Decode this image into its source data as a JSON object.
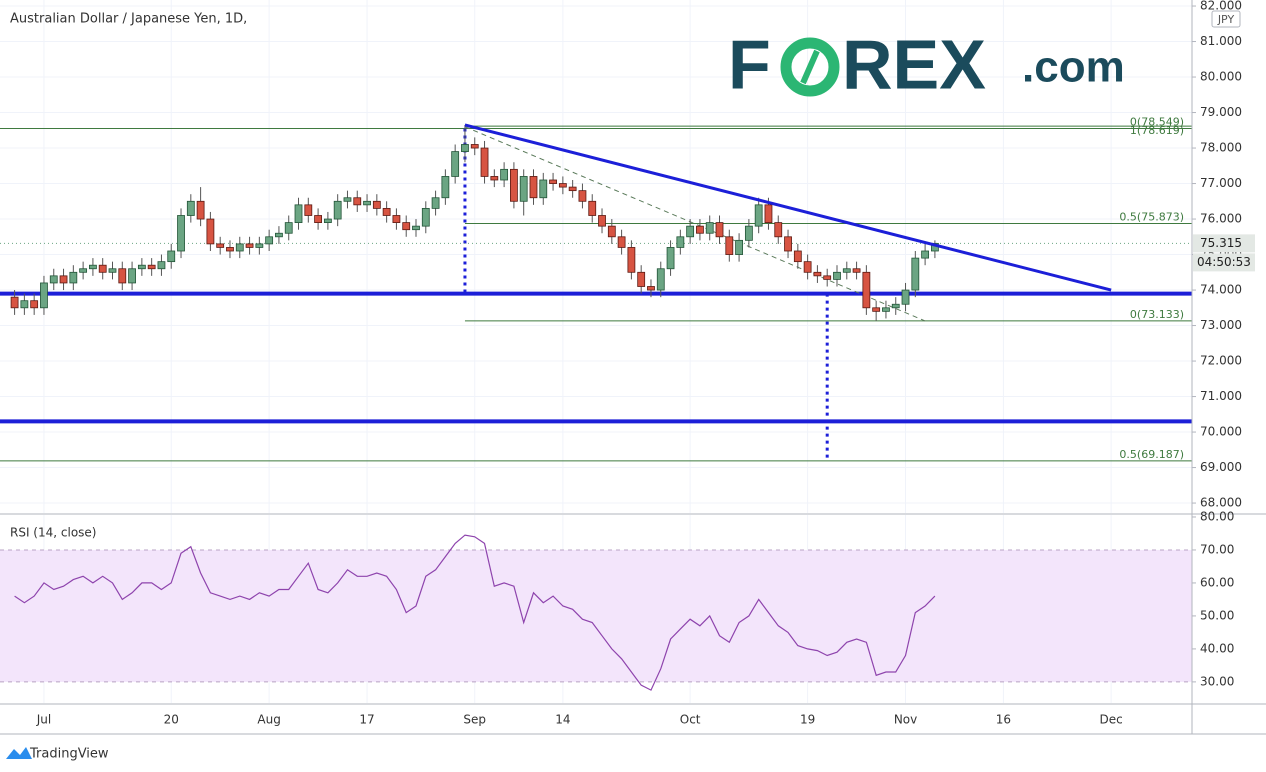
{
  "chart_data": {
    "type": "candlestick",
    "title": "Australian Dollar / Japanese Yen, 1D,",
    "currency": "JPY",
    "logo": [
      "F",
      "REX",
      ".com"
    ],
    "footer": "TradingView",
    "countdown": "04:50:53",
    "up_color": "#6ba583",
    "down_color": "#d75442",
    "xlim": [
      -1.49,
      120.26
    ],
    "xticks": [
      {
        "value": 3,
        "label": "Jul"
      },
      {
        "value": 16,
        "label": "20"
      },
      {
        "value": 26,
        "label": "Aug"
      },
      {
        "value": 36,
        "label": "17"
      },
      {
        "value": 47,
        "label": "Sep"
      },
      {
        "value": 56,
        "label": "14"
      },
      {
        "value": 69,
        "label": "Oct"
      },
      {
        "value": 81,
        "label": "19"
      },
      {
        "value": 91,
        "label": "Nov"
      },
      {
        "value": 101,
        "label": "16"
      },
      {
        "value": 112,
        "label": "Dec"
      }
    ],
    "ylim": [
      67.72,
      82.17
    ],
    "yticks": [
      {
        "value": 68,
        "label": "68.000"
      },
      {
        "value": 69,
        "label": "69.000"
      },
      {
        "value": 70,
        "label": "70.000"
      },
      {
        "value": 71,
        "label": "71.000"
      },
      {
        "value": 72,
        "label": "72.000"
      },
      {
        "value": 73,
        "label": "73.000"
      },
      {
        "value": 74,
        "label": "74.000"
      },
      {
        "value": 75,
        "label": "75.000"
      },
      {
        "value": 76,
        "label": "76.000"
      },
      {
        "value": 77,
        "label": "77.000"
      },
      {
        "value": 78,
        "label": "78.000"
      },
      {
        "value": 79,
        "label": "79.000"
      },
      {
        "value": 80,
        "label": "80.000"
      },
      {
        "value": 81,
        "label": "81.000"
      },
      {
        "value": 82,
        "label": "82.000"
      }
    ],
    "grid": true,
    "open": [
      73.8,
      73.5,
      73.7,
      73.5,
      74.2,
      74.4,
      74.2,
      74.5,
      74.6,
      74.7,
      74.5,
      74.6,
      74.2,
      74.6,
      74.7,
      74.6,
      74.8,
      75.1,
      76.1,
      76.5,
      76.0,
      75.3,
      75.2,
      75.1,
      75.3,
      75.2,
      75.3,
      75.5,
      75.6,
      75.9,
      76.4,
      76.1,
      75.9,
      76.0,
      76.5,
      76.6,
      76.4,
      76.5,
      76.3,
      76.1,
      75.9,
      75.7,
      75.8,
      76.3,
      76.6,
      77.2,
      77.9,
      78.1,
      78.0,
      77.2,
      77.1,
      77.4,
      76.5,
      77.2,
      76.6,
      77.1,
      77.0,
      76.9,
      76.8,
      76.5,
      76.1,
      75.8,
      75.5,
      75.2,
      74.5,
      74.1,
      74.0,
      74.6,
      75.2,
      75.5,
      75.8,
      75.6,
      75.9,
      75.5,
      75.0,
      75.4,
      75.8,
      76.4,
      75.9,
      75.5,
      75.1,
      74.8,
      74.5,
      74.4,
      74.3,
      74.5,
      74.6,
      74.5,
      73.5,
      73.4,
      73.5,
      73.6,
      74.0,
      74.9,
      75.1
    ],
    "high": [
      74.0,
      73.9,
      73.9,
      74.4,
      74.6,
      74.6,
      74.7,
      74.8,
      74.9,
      74.9,
      74.8,
      74.8,
      74.8,
      74.9,
      74.9,
      75.0,
      75.3,
      76.3,
      76.7,
      76.9,
      76.2,
      75.5,
      75.4,
      75.5,
      75.5,
      75.5,
      75.7,
      75.8,
      76.1,
      76.6,
      76.6,
      76.3,
      76.2,
      76.7,
      76.8,
      76.8,
      76.7,
      76.7,
      76.5,
      76.3,
      76.1,
      76.0,
      76.5,
      76.8,
      77.4,
      78.1,
      78.65,
      78.3,
      78.2,
      77.4,
      77.6,
      77.6,
      77.4,
      77.4,
      77.3,
      77.3,
      77.2,
      77.1,
      77.0,
      76.7,
      76.3,
      76.0,
      75.7,
      75.4,
      74.7,
      74.3,
      74.8,
      75.4,
      75.7,
      76.0,
      76.0,
      76.1,
      76.1,
      75.7,
      75.6,
      76.0,
      76.6,
      76.6,
      76.1,
      75.7,
      75.3,
      75.0,
      74.7,
      74.6,
      74.7,
      74.8,
      74.8,
      74.7,
      73.7,
      73.7,
      73.8,
      74.2,
      75.1,
      75.3,
      75.4
    ],
    "low": [
      73.3,
      73.3,
      73.3,
      73.3,
      74.0,
      74.0,
      74.0,
      74.3,
      74.4,
      74.3,
      74.3,
      74.0,
      74.0,
      74.4,
      74.4,
      74.4,
      74.6,
      74.9,
      75.9,
      75.8,
      75.1,
      75.0,
      74.9,
      74.9,
      75.0,
      75.0,
      75.1,
      75.3,
      75.4,
      75.7,
      75.9,
      75.7,
      75.7,
      75.8,
      76.3,
      76.2,
      76.2,
      76.1,
      75.9,
      75.7,
      75.5,
      75.5,
      75.6,
      76.1,
      76.4,
      77.0,
      77.6,
      77.8,
      77.0,
      76.9,
      76.9,
      76.3,
      76.1,
      76.4,
      76.4,
      76.8,
      76.7,
      76.6,
      76.3,
      75.9,
      75.6,
      75.3,
      75.0,
      74.3,
      73.9,
      73.8,
      73.8,
      74.4,
      75.0,
      75.3,
      75.4,
      75.4,
      75.3,
      74.8,
      74.8,
      75.2,
      75.6,
      75.7,
      75.3,
      74.9,
      74.6,
      74.3,
      74.2,
      74.1,
      74.1,
      74.3,
      74.3,
      73.3,
      73.13,
      73.2,
      73.3,
      73.4,
      73.8,
      74.7,
      74.9
    ],
    "close": [
      73.5,
      73.7,
      73.5,
      74.2,
      74.4,
      74.2,
      74.5,
      74.6,
      74.7,
      74.5,
      74.6,
      74.2,
      74.6,
      74.7,
      74.6,
      74.8,
      75.1,
      76.1,
      76.5,
      76.0,
      75.3,
      75.2,
      75.1,
      75.3,
      75.2,
      75.3,
      75.5,
      75.6,
      75.9,
      76.4,
      76.1,
      75.9,
      76.0,
      76.5,
      76.6,
      76.4,
      76.5,
      76.3,
      76.1,
      75.9,
      75.7,
      75.8,
      76.3,
      76.6,
      77.2,
      77.9,
      78.1,
      78.0,
      77.2,
      77.1,
      77.4,
      76.5,
      77.2,
      76.6,
      77.1,
      77.0,
      76.9,
      76.8,
      76.5,
      76.1,
      75.8,
      75.5,
      75.2,
      74.5,
      74.1,
      74.0,
      74.6,
      75.2,
      75.5,
      75.8,
      75.6,
      75.9,
      75.5,
      75.0,
      75.4,
      75.8,
      76.4,
      75.9,
      75.5,
      75.1,
      74.8,
      74.5,
      74.4,
      74.3,
      74.5,
      74.6,
      74.5,
      73.5,
      73.4,
      73.5,
      73.6,
      74.0,
      74.9,
      75.1,
      75.315
    ],
    "hlines": {
      "color": "#1c1fd8",
      "values": [
        73.9,
        70.3
      ]
    },
    "trendline": {
      "color": "#1c1fd8",
      "x": [
        46,
        112
      ],
      "y": [
        78.65,
        74.0
      ]
    },
    "dashed": {
      "color": "#5a7a5a",
      "x": [
        46,
        93
      ],
      "y": [
        78.6,
        73.13
      ]
    },
    "vlines": {
      "color": "#1c1fd8",
      "items": [
        {
          "x": 46,
          "y": [
            78.55,
            73.9
          ]
        },
        {
          "x": 83,
          "y": [
            73.9,
            69.19
          ]
        }
      ]
    },
    "fibs": {
      "color": "#3f7a3f",
      "sets": [
        {
          "start": 46,
          "levels": [
            {
              "value": 78.619,
              "label": "1(78.619)"
            },
            {
              "value": 75.873,
              "label": "0.5(75.873)"
            },
            {
              "value": 73.133,
              "label": "0(73.133)"
            }
          ]
        },
        {
          "levels": [
            {
              "value": 78.549,
              "label": "0(78.549)"
            },
            {
              "value": 69.187,
              "label": "0.5(69.187)"
            }
          ]
        }
      ]
    },
    "rsi": {
      "label": "RSI (14, close)",
      "color": "#8e44ad",
      "band": [
        30,
        70
      ],
      "band_color": "#f3e5fb",
      "ylim": [
        23.6,
        80.6
      ],
      "yticks": [
        {
          "value": 30,
          "label": "30.00"
        },
        {
          "value": 40,
          "label": "40.00"
        },
        {
          "value": 50,
          "label": "50.00"
        },
        {
          "value": 60,
          "label": "60.00"
        },
        {
          "value": 70,
          "label": "70.00"
        },
        {
          "value": 80,
          "label": "80.00"
        }
      ],
      "values": [
        56,
        54,
        56,
        60,
        58,
        59,
        61,
        62,
        60,
        62,
        60,
        55,
        57,
        60,
        60,
        58,
        60,
        69,
        71,
        63,
        57,
        56,
        55,
        56,
        55,
        57,
        56,
        58,
        58,
        62,
        66,
        58,
        57,
        60,
        64,
        62,
        62,
        63,
        62,
        58,
        51,
        53,
        62,
        64,
        68,
        72,
        74.5,
        74,
        72,
        59,
        60,
        59,
        48,
        57,
        54,
        56,
        53,
        52,
        49,
        48,
        44,
        40,
        37,
        33,
        29,
        27.5,
        34,
        43,
        46,
        49,
        47,
        50,
        44,
        42,
        48,
        50,
        55,
        51,
        47,
        45,
        41,
        40,
        39.5,
        38,
        39,
        42,
        43,
        42,
        32,
        33,
        33,
        38,
        51,
        53,
        56
      ]
    }
  }
}
